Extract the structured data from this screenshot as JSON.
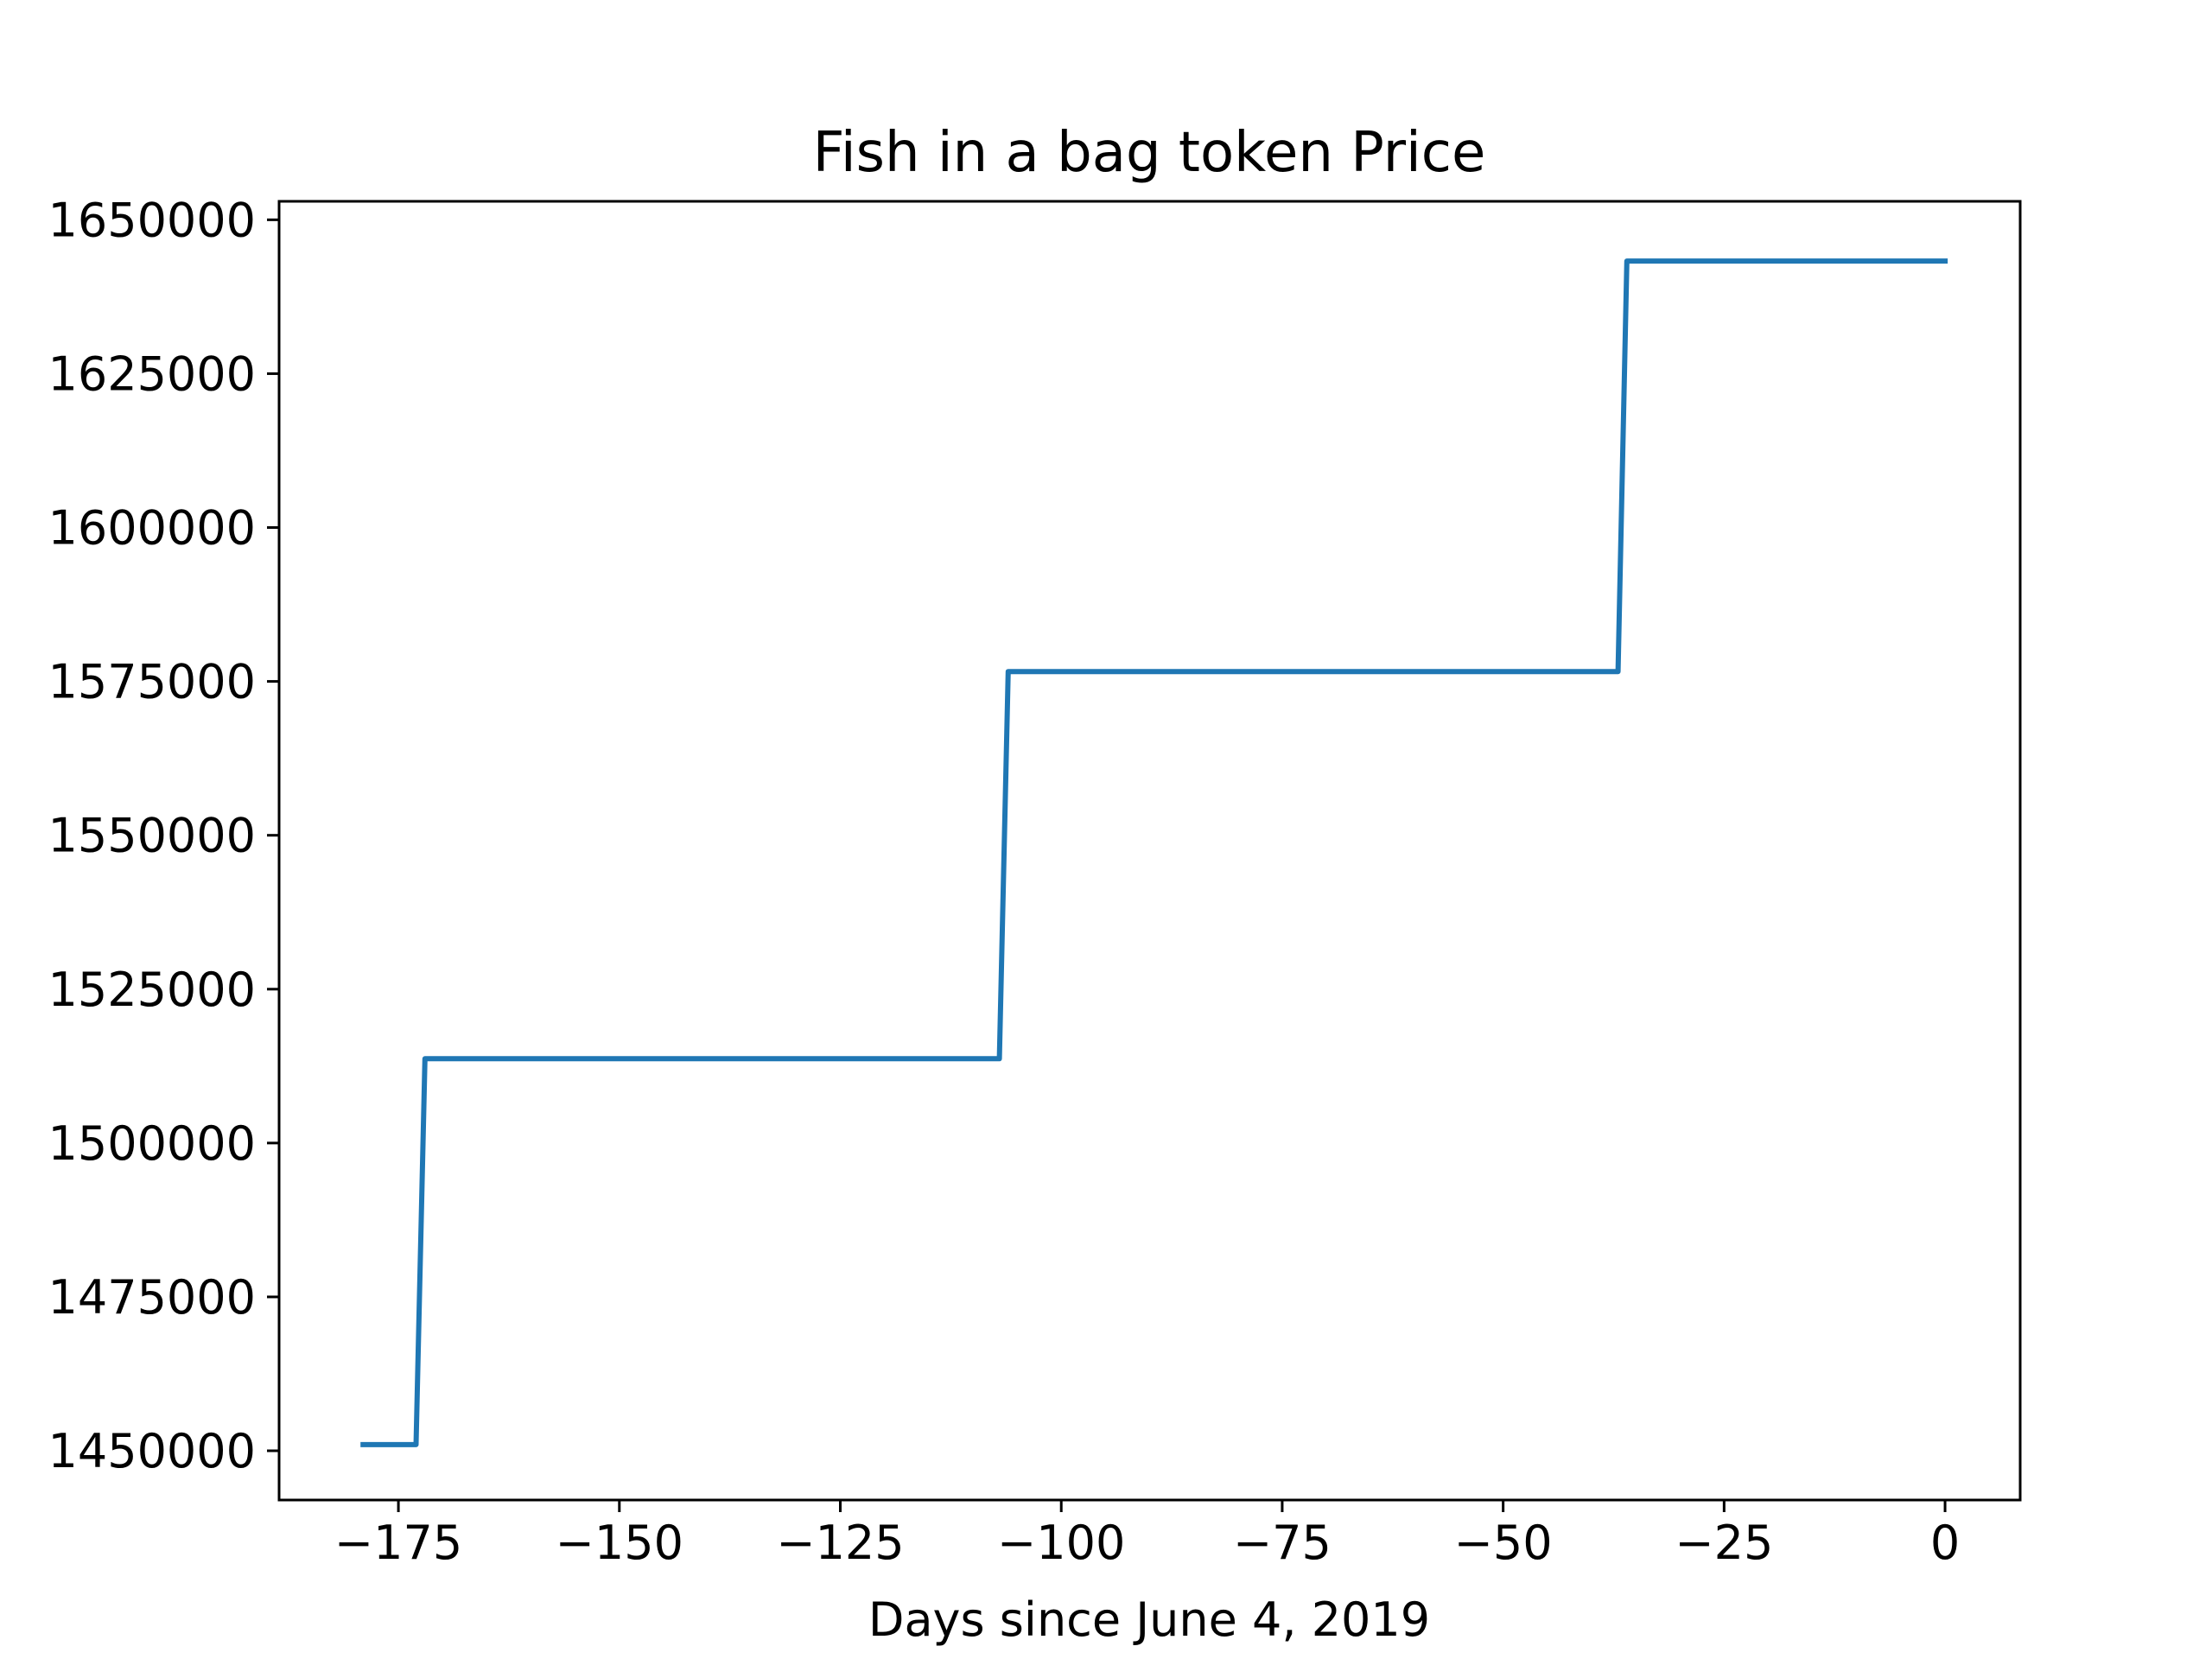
{
  "chart_data": {
    "type": "line",
    "title": "Fish in a bag token Price",
    "xlabel": "Days since June 4, 2019",
    "ylabel": "",
    "xlim": [
      -188.5,
      8.5
    ],
    "ylim": [
      1442000,
      1653000
    ],
    "x_ticks": [
      -175,
      -150,
      -125,
      -100,
      -75,
      -50,
      -25,
      0
    ],
    "x_tick_labels": [
      "−175",
      "−150",
      "−125",
      "−100",
      "−75",
      "−50",
      "−25",
      "0"
    ],
    "y_ticks": [
      1450000,
      1475000,
      1500000,
      1525000,
      1550000,
      1575000,
      1600000,
      1625000,
      1650000
    ],
    "y_tick_labels": [
      "1450000",
      "1475000",
      "1500000",
      "1525000",
      "1550000",
      "1575000",
      "1600000",
      "1625000",
      "1650000"
    ],
    "grid": false,
    "legend": "none",
    "series": [
      {
        "color": "#1f77b4",
        "x": [
          -179,
          -173,
          -172,
          -107,
          -106,
          -37,
          -36,
          0
        ],
        "y": [
          1451000,
          1451000,
          1513700,
          1513700,
          1576600,
          1576600,
          1643300,
          1643300
        ]
      }
    ]
  }
}
